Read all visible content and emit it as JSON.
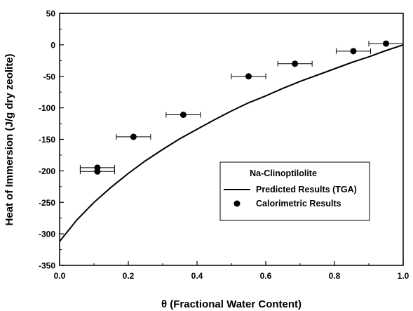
{
  "chart_data": {
    "type": "scatter",
    "title": "",
    "xlabel": "θ (Fractional Water Content)",
    "ylabel": "Heat of Immersion (J/g dry zeolite)",
    "xlim": [
      0.0,
      1.0
    ],
    "ylim": [
      -350,
      50
    ],
    "xticks": [
      0.0,
      0.2,
      0.4,
      0.6,
      0.8,
      1.0
    ],
    "xtick_labels": [
      "0.0",
      "0.2",
      "0.4",
      "0.6",
      "0.8",
      "1.0"
    ],
    "yticks": [
      50,
      0,
      -50,
      -100,
      -150,
      -200,
      -250,
      -300,
      -350
    ],
    "ytick_labels": [
      "50",
      "0",
      "-50",
      "-100",
      "-150",
      "-200",
      "-250",
      "-300",
      "-350"
    ],
    "grid": false,
    "legend": {
      "title": "Na-Clinoptilolite",
      "placement": "lower-right",
      "entries": [
        "Predicted Results (TGA)",
        "Calorimetric Results"
      ]
    },
    "series": [
      {
        "name": "Predicted Results (TGA)",
        "kind": "line",
        "color": "#000000",
        "x": [
          0.0,
          0.05,
          0.1,
          0.15,
          0.2,
          0.25,
          0.3,
          0.35,
          0.4,
          0.45,
          0.5,
          0.55,
          0.6,
          0.65,
          0.7,
          0.75,
          0.8,
          0.85,
          0.9,
          0.95,
          1.0
        ],
        "y": [
          -312,
          -278,
          -250,
          -226,
          -204,
          -184,
          -166,
          -149,
          -134,
          -119,
          -105,
          -92,
          -81,
          -69,
          -58,
          -48,
          -38,
          -28,
          -19,
          -9,
          0
        ]
      },
      {
        "name": "Calorimetric Results",
        "kind": "scatter",
        "color": "#000000",
        "x": [
          0.11,
          0.11,
          0.215,
          0.36,
          0.55,
          0.685,
          0.855,
          0.95
        ],
        "y": [
          -195,
          -201,
          -146,
          -111,
          -50,
          -30,
          -10,
          2
        ],
        "xerr": [
          0.05,
          0.05,
          0.05,
          0.05,
          0.05,
          0.05,
          0.05,
          0.05
        ]
      }
    ]
  }
}
